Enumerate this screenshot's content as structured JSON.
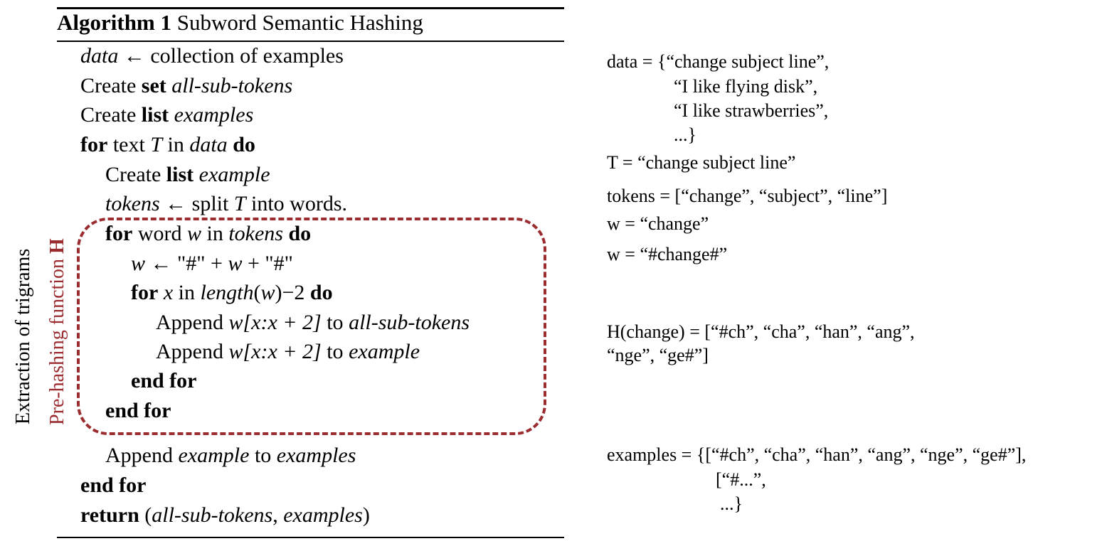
{
  "algorithm": {
    "number_label": "Algorithm 1",
    "title": "Subword Semantic Hashing",
    "lines": {
      "l1": {
        "var": "data",
        "arrow": "←",
        "rest": "collection of examples"
      },
      "l2": {
        "pre": "Create",
        "kw": "set",
        "var": "all-sub-tokens"
      },
      "l3": {
        "pre": "Create",
        "kw": "list",
        "var": "examples"
      },
      "l4": {
        "kw": "for",
        "t1": "text",
        "var": "T",
        "t2": "in",
        "var2": "data",
        "kw2": "do"
      },
      "l5": {
        "pre": "Create",
        "kw": "list",
        "var": "example"
      },
      "l6": {
        "var": "tokens",
        "arrow": "←",
        "t1": "split",
        "var2": "T",
        "t2": "into words."
      },
      "l7": {
        "kw": "for",
        "t1": "word",
        "var": "w",
        "t2": "in",
        "var2": "tokens",
        "kw2": "do"
      },
      "l8": {
        "var": "w",
        "arrow": "←",
        "rest": "\"#\" + ",
        "var2": "w",
        "rest2": " + \"#\""
      },
      "l9": {
        "kw": "for",
        "var": "x",
        "t1": "in",
        "fn": "length",
        "paren_open": "(",
        "var2": "w",
        "paren_close": ")−2",
        "kw2": "do"
      },
      "l10": {
        "pre": "Append",
        "expr": "w[x:x + 2]",
        "t1": "to",
        "var": "all-sub-tokens"
      },
      "l11": {
        "pre": "Append",
        "expr": "w[x:x + 2]",
        "t1": "to",
        "var": "example"
      },
      "l12": {
        "kw": "end for"
      },
      "l13": {
        "kw": "end for"
      },
      "l14": {
        "pre": "Append",
        "var": "example",
        "t1": "to",
        "var2": "examples"
      },
      "l15": {
        "kw": "end for"
      },
      "l16": {
        "kw": "return",
        "open": "(",
        "var": "all-sub-tokens",
        "comma": ", ",
        "var2": "examples",
        "close": ")"
      }
    }
  },
  "labels": {
    "outer": "Extraction of trigrams",
    "inner_prefix": "Pre-hashing function ",
    "inner_bold": "H"
  },
  "examples": {
    "data1": "data = {“change subject line”,",
    "data2": "“I like flying disk”,",
    "data3": "“I like strawberries”,",
    "data4": "...}",
    "t": "T = “change subject line”",
    "tokens": "tokens = [“change”, “subject”, “line”]",
    "w1": "w = “change”",
    "w2": "w = “#change#”",
    "h1": "H(change) = [“#ch”, “cha”, “han”, “ang”,",
    "h2": "“nge”, “ge#”]",
    "ex1": "examples = {[“#ch”, “cha”, “han”, “ang”, “nge”, “ge#”],",
    "ex2": "[“#...”,",
    "ex3": "...}"
  },
  "colors": {
    "accent": "#9b2d30"
  }
}
